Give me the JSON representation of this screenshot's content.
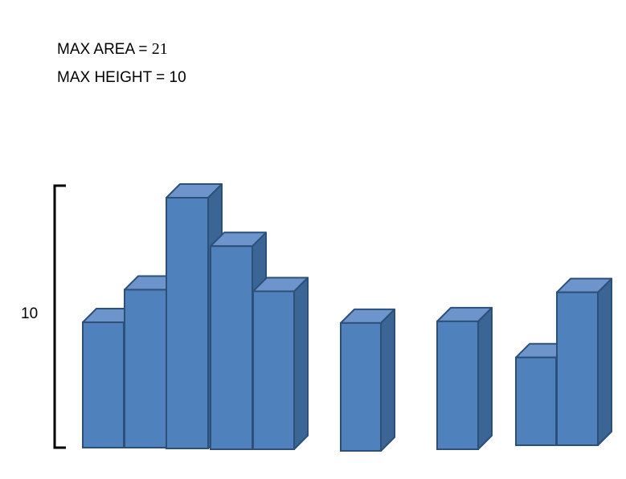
{
  "stats": {
    "max_area_label": "MAX AREA =",
    "max_area_value": "21",
    "max_height_label": "MAX HEIGHT =",
    "max_height_value": "10"
  },
  "brace": {
    "label": "10"
  },
  "colors": {
    "front": "#4F81BD",
    "side": "#3B6595",
    "top": "#6E94CC",
    "edge": "#2D5079"
  },
  "bar_heights": [
    5,
    6.3,
    10,
    8.1,
    6.3,
    5.1,
    5.1,
    3.5,
    6.1
  ]
}
